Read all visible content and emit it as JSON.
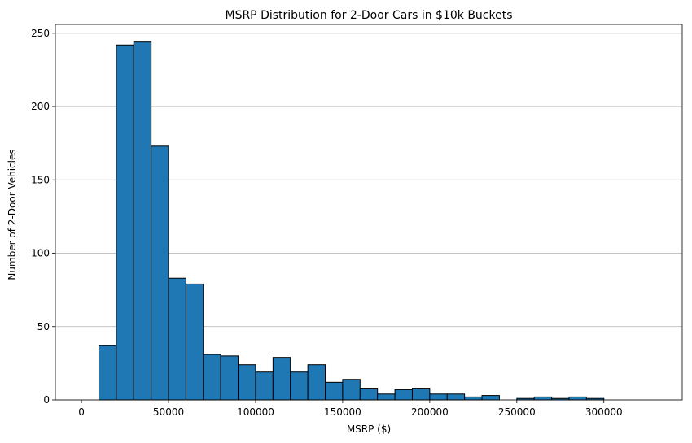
{
  "chart_data": {
    "type": "bar",
    "title": "MSRP Distribution for 2-Door Cars in $10k Buckets",
    "xlabel": "MSRP ($)",
    "ylabel": "Number of 2-Door Vehicles",
    "bin_width": 10000,
    "bin_starts": [
      0,
      10000,
      20000,
      30000,
      40000,
      50000,
      60000,
      70000,
      80000,
      90000,
      100000,
      110000,
      120000,
      130000,
      140000,
      150000,
      160000,
      170000,
      180000,
      190000,
      200000,
      210000,
      220000,
      230000,
      240000,
      250000,
      260000,
      270000,
      280000,
      290000,
      300000,
      310000,
      320000
    ],
    "values": [
      0,
      37,
      242,
      244,
      173,
      83,
      79,
      31,
      30,
      24,
      19,
      29,
      19,
      24,
      12,
      14,
      8,
      4,
      7,
      8,
      4,
      4,
      2,
      3,
      0,
      1,
      2,
      1,
      2,
      1,
      0,
      0,
      0
    ],
    "xlim": [
      -15000,
      345000
    ],
    "ylim": [
      0,
      256
    ],
    "xticks": [
      0,
      50000,
      100000,
      150000,
      200000,
      250000,
      300000
    ],
    "xtick_labels": [
      "0",
      "50000",
      "100000",
      "150000",
      "200000",
      "250000",
      "300000"
    ],
    "yticks": [
      0,
      50,
      100,
      150,
      200,
      250
    ],
    "ytick_labels": [
      "0",
      "50",
      "100",
      "150",
      "200",
      "250"
    ],
    "grid": "y",
    "bar_color": "#1f77b4",
    "edge_color": "#000000"
  }
}
